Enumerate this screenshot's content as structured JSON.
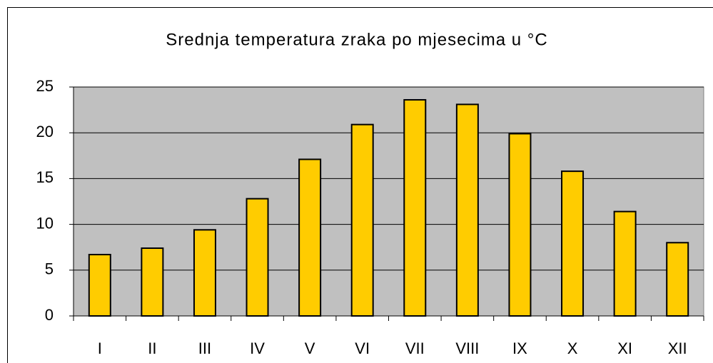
{
  "chart_data": {
    "type": "bar",
    "title": "Srednja temperatura zraka po mjesecima u °C",
    "categories": [
      "I",
      "II",
      "III",
      "IV",
      "V",
      "VI",
      "VII",
      "VIII",
      "IX",
      "X",
      "XI",
      "XII"
    ],
    "values": [
      6.7,
      7.4,
      9.4,
      12.8,
      17.1,
      20.9,
      23.6,
      23.1,
      19.9,
      15.8,
      11.4,
      8.0
    ],
    "color": "#ffcc00",
    "ylim": [
      0,
      25
    ],
    "yticks": [
      0,
      5,
      10,
      15,
      20,
      25
    ],
    "grid": true
  }
}
